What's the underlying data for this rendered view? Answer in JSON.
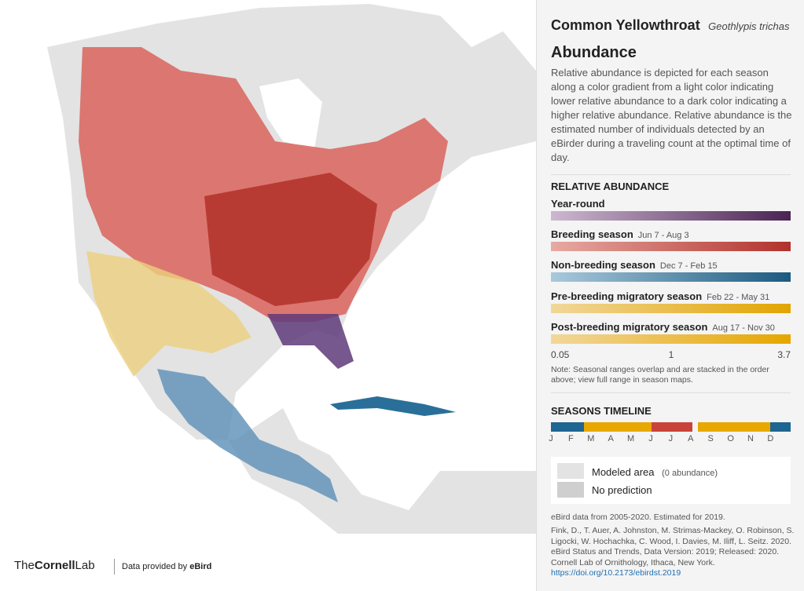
{
  "header": {
    "common_name": "Common Yellowthroat",
    "scientific_name": "Geothlypis trichas"
  },
  "section": {
    "title": "Abundance",
    "description": "Relative abundance is depicted for each season along a color gradient from a light color indicating lower relative abundance to a dark color indicating a higher relative abundance. Relative abundance is the estimated number of individuals detected by an eBirder during a traveling count at the optimal time of day."
  },
  "legend": {
    "title": "RELATIVE ABUNDANCE",
    "seasons": [
      {
        "name": "Year-round"
      },
      {
        "name": "Breeding season",
        "dates": "Jun 7 - Aug 3"
      },
      {
        "name": "Non-breeding season",
        "dates": "Dec 7 - Feb 15"
      },
      {
        "name": "Pre-breeding migratory season",
        "dates": "Feb 22 - May 31"
      },
      {
        "name": "Post-breeding migratory season",
        "dates": "Aug 17 - Nov 30"
      }
    ],
    "scale_labels": [
      "0.05",
      "1",
      "3.7"
    ],
    "note": "Note: Seasonal ranges overlap and are stacked in the order above; view full range in season maps."
  },
  "timeline": {
    "title": "SEASONS TIMELINE",
    "months": [
      "J",
      "F",
      "M",
      "A",
      "M",
      "J",
      "J",
      "A",
      "S",
      "O",
      "N",
      "D"
    ]
  },
  "key": [
    {
      "label": "Modeled area",
      "note": "(0 abundance)"
    },
    {
      "label": "No prediction"
    }
  ],
  "footer": {
    "data_years": "eBird data from 2005-2020. Estimated for 2019.",
    "citation": "Fink, D., T. Auer, A. Johnston, M. Strimas-Mackey, O. Robinson, S. Ligocki, W. Hochachka, C. Wood, I. Davies, M. Iliff, L. Seitz. 2020. eBird Status and Trends, Data Version: 2019; Released: 2020. Cornell Lab of Ornithology, Ithaca, New York.",
    "doi": "https://doi.org/10.2173/ebirdst.2019"
  },
  "branding": {
    "logo_the": "The",
    "logo_cornell": "Cornell",
    "logo_lab": "Lab",
    "credit_prefix": "Data provided by",
    "credit_name": "eBird"
  }
}
